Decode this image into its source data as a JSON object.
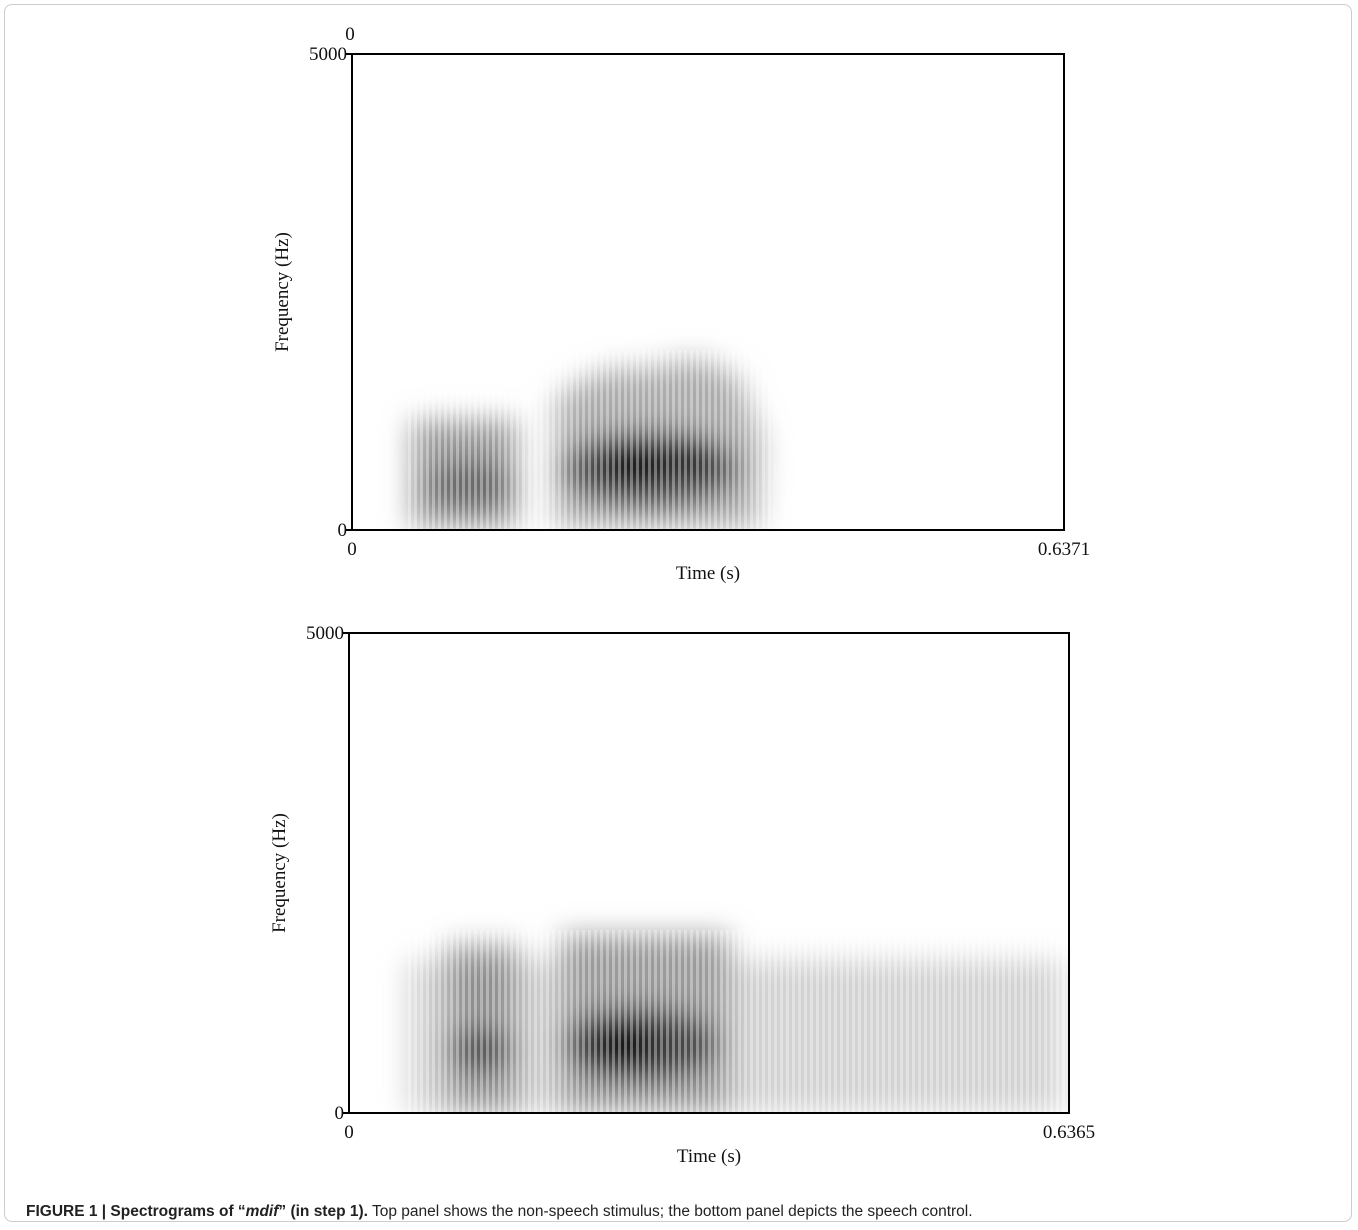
{
  "chart_data": [
    {
      "type": "spectrogram",
      "corner_label": "0",
      "xlabel": "Time (s)",
      "ylabel": "Frequency (Hz)",
      "xlim": [
        0,
        0.6371
      ],
      "xticks": [
        0,
        0.6371
      ],
      "ylim": [
        0,
        5000
      ],
      "yticks": [
        0,
        5000
      ]
    },
    {
      "type": "spectrogram",
      "xlabel": "Time (s)",
      "ylabel": "Frequency (Hz)",
      "xlim": [
        0,
        0.6365
      ],
      "xticks": [
        0,
        0.6365
      ],
      "ylim": [
        0,
        5000
      ],
      "yticks": [
        0,
        5000
      ]
    }
  ],
  "caption": {
    "lead": "FIGURE 1 | Spectrograms of “",
    "term": "mdif",
    "tail": "” (in step 1).",
    "body": " Top panel shows the non-speech stimulus; the bottom panel depicts the speech control."
  }
}
